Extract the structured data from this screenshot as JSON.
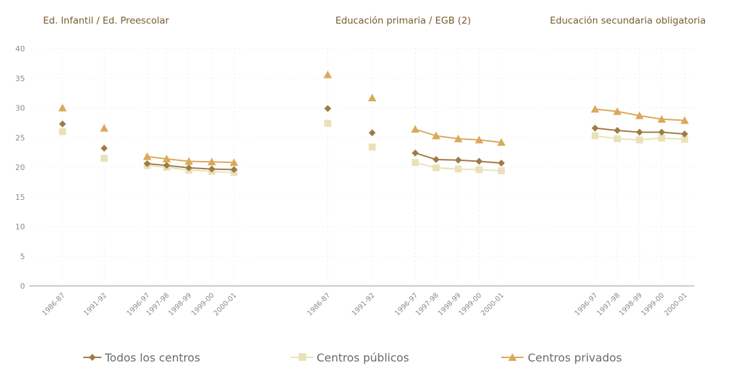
{
  "chart_data": {
    "type": "line",
    "ylim": [
      0,
      40
    ],
    "yticks": [
      "0",
      "5",
      "10",
      "15",
      "20",
      "25",
      "30",
      "35",
      "40"
    ],
    "grid": true,
    "legend_position": "bottom",
    "panels": [
      {
        "title": "Ed. Infantil / Ed. Preescolar",
        "categories": [
          "1986-87",
          "1991-92",
          "1996-97",
          "1997-98",
          "1998-99",
          "1999-00",
          "2000-01"
        ],
        "series": [
          {
            "name": "Todos los centros",
            "values": [
              27.3,
              23.2,
              20.6,
              20.3,
              19.9,
              19.7,
              19.6
            ]
          },
          {
            "name": "Centros públicos",
            "values": [
              26.0,
              21.5,
              20.3,
              20.0,
              19.5,
              19.3,
              19.1
            ]
          },
          {
            "name": "Centros privados",
            "values": [
              30.0,
              26.6,
              21.8,
              21.4,
              21.0,
              20.9,
              20.8
            ]
          }
        ]
      },
      {
        "title": "Educación primaria / EGB (2)",
        "categories": [
          "1986-87",
          "1991-92",
          "1996-97",
          "1997-98",
          "1998-99",
          "1999-00",
          "2000-01"
        ],
        "series": [
          {
            "name": "Todos los centros",
            "values": [
              29.9,
              25.8,
              22.4,
              21.3,
              21.2,
              21.0,
              20.7
            ]
          },
          {
            "name": "Centros públicos",
            "values": [
              27.4,
              23.4,
              20.8,
              19.9,
              19.7,
              19.6,
              19.4
            ]
          },
          {
            "name": "Centros privados",
            "values": [
              35.6,
              31.7,
              26.4,
              25.3,
              24.8,
              24.6,
              24.2
            ]
          }
        ]
      },
      {
        "title": "Educación secundaria obligatoria",
        "categories": [
          "1996-97",
          "1997-98",
          "1998-99",
          "1999-00",
          "2000-01"
        ],
        "series": [
          {
            "name": "Todos los centros",
            "values": [
              26.6,
              26.2,
              25.9,
              25.9,
              25.6
            ]
          },
          {
            "name": "Centros públicos",
            "values": [
              25.3,
              24.8,
              24.6,
              24.9,
              24.7
            ]
          },
          {
            "name": "Centros privados",
            "values": [
              29.8,
              29.4,
              28.7,
              28.1,
              27.9
            ]
          }
        ]
      }
    ],
    "legend": [
      {
        "label": "Todos los centros",
        "marker": "diamond",
        "color": "#a07a45"
      },
      {
        "label": "Centros públicos",
        "marker": "square",
        "color": "#e9e2b9"
      },
      {
        "label": "Centros privados",
        "marker": "triangle",
        "color": "#d9a95a"
      }
    ]
  }
}
